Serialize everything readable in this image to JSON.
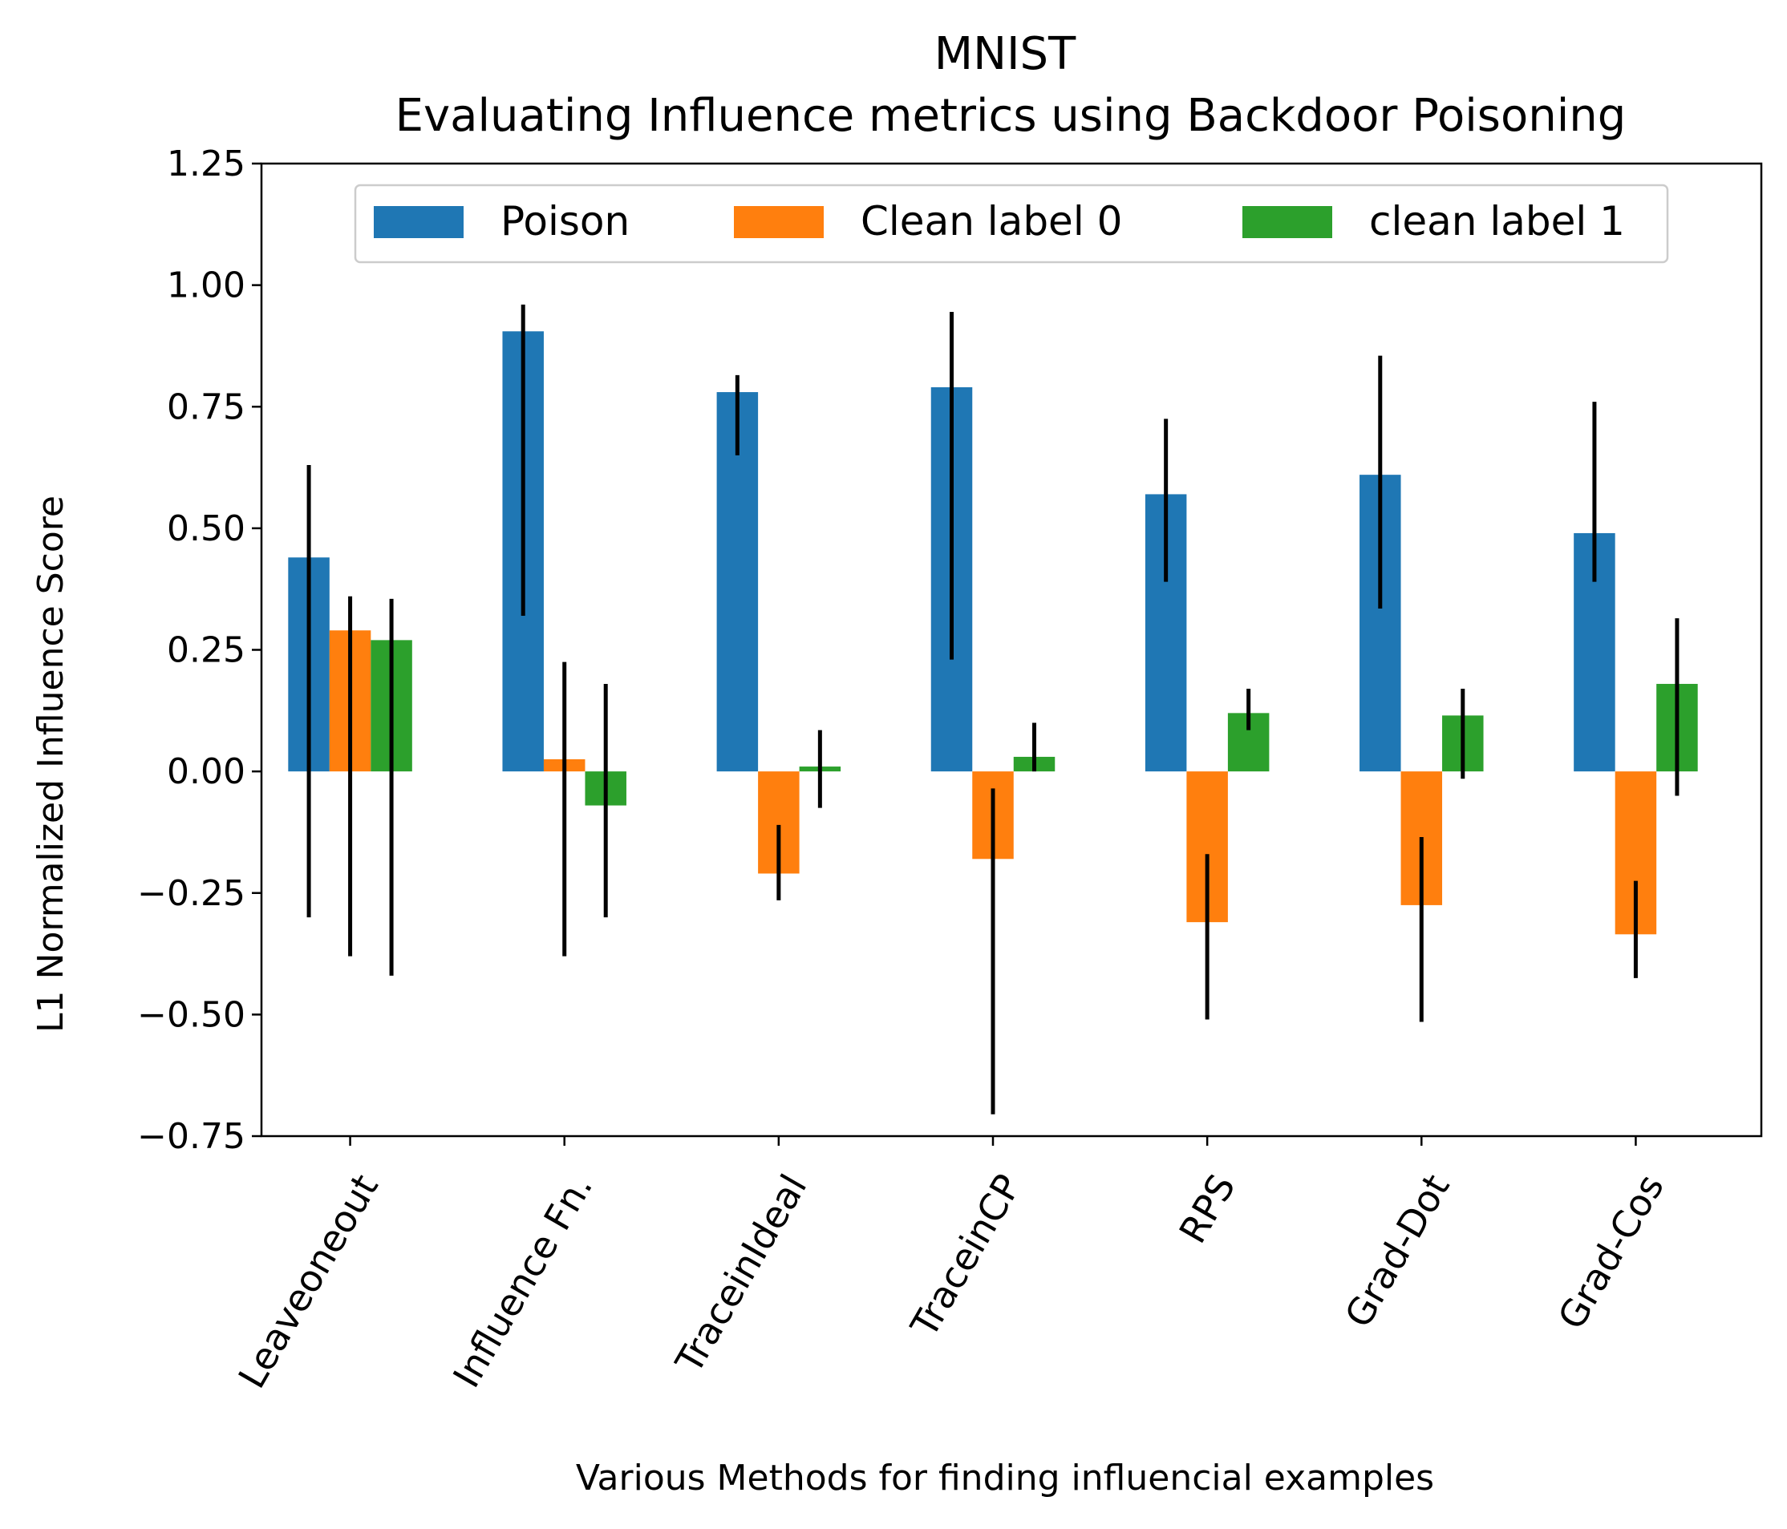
{
  "chart_data": {
    "type": "bar",
    "title": "MNIST",
    "subtitle": "Evaluating Influence metrics using Backdoor Poisoning",
    "xlabel": "Various Methods for finding influencial examples",
    "ylabel": "L1 Normalized Influence Score",
    "ylim": [
      -0.75,
      1.25
    ],
    "yticks": [
      -0.75,
      -0.5,
      -0.25,
      0.0,
      0.25,
      0.5,
      0.75,
      1.0,
      1.25
    ],
    "ytick_labels": [
      "−0.75",
      "−0.50",
      "−0.25",
      "0.00",
      "0.25",
      "0.50",
      "0.75",
      "1.00",
      "1.25"
    ],
    "categories": [
      "Leaveoneout",
      "Influence Fn.",
      "TraceinIdeal",
      "TraceinCP",
      "RPS",
      "Grad-Dot",
      "Grad-Cos"
    ],
    "grid": false,
    "legend_position": "top-center",
    "series": [
      {
        "name": "Poison",
        "color": "#1f77b4",
        "values": [
          0.44,
          0.905,
          0.78,
          0.79,
          0.57,
          0.61,
          0.49
        ],
        "error_low": [
          -0.3,
          0.32,
          0.65,
          0.23,
          0.39,
          0.335,
          0.39
        ],
        "error_high": [
          0.63,
          0.96,
          0.815,
          0.945,
          0.725,
          0.855,
          0.76
        ]
      },
      {
        "name": "Clean label 0",
        "color": "#ff7f0e",
        "values": [
          0.29,
          0.025,
          -0.21,
          -0.18,
          -0.31,
          -0.275,
          -0.335
        ],
        "error_low": [
          -0.38,
          -0.38,
          -0.265,
          -0.705,
          -0.51,
          -0.515,
          -0.425
        ],
        "error_high": [
          0.36,
          0.225,
          -0.11,
          -0.035,
          -0.17,
          -0.135,
          -0.225
        ]
      },
      {
        "name": "clean label 1",
        "color": "#2ca02c",
        "values": [
          0.27,
          -0.07,
          0.01,
          0.03,
          0.12,
          0.115,
          0.18
        ],
        "error_low": [
          -0.42,
          -0.3,
          -0.075,
          0.0,
          0.085,
          -0.015,
          -0.05
        ],
        "error_high": [
          0.355,
          0.18,
          0.085,
          0.1,
          0.17,
          0.17,
          0.315
        ]
      }
    ]
  }
}
